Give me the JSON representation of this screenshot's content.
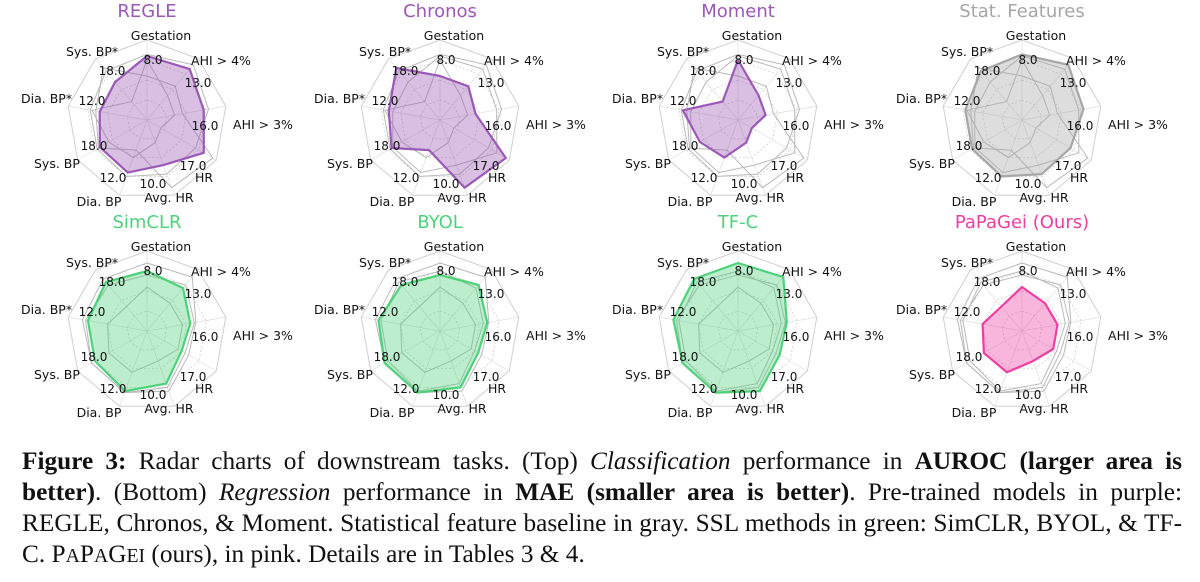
{
  "figure": {
    "axis_labels": [
      "Gestation",
      "AHI > 4%",
      "AHI > 3%",
      "HR",
      "Avg. HR",
      "Dia. BP",
      "Sys. BP",
      "Dia. BP*",
      "Sys. BP*"
    ],
    "classification_ticks": [
      "8.0",
      "13.0",
      "16.0",
      "17.0",
      "10.0",
      "12.0",
      "18.0",
      "12.0",
      "18.0"
    ],
    "regression_ticks": [
      "8.0",
      "13.0",
      "16.0",
      "17.0",
      "10.0",
      "12.0",
      "18.0",
      "12.0",
      "18.0"
    ]
  },
  "chart_data": [
    {
      "type": "radar",
      "panel": "top",
      "title": "REGLE",
      "color": "#9b59b6",
      "metric": "AUROC",
      "values": [
        0.8,
        0.83,
        0.72,
        0.82,
        0.6,
        0.7,
        0.68,
        0.6,
        0.62
      ]
    },
    {
      "type": "radar",
      "panel": "top",
      "title": "Chronos",
      "color": "#9b59b6",
      "metric": "AUROC",
      "values": [
        0.55,
        0.55,
        0.45,
        0.95,
        0.9,
        0.4,
        0.7,
        0.65,
        0.85
      ]
    },
    {
      "type": "radar",
      "panel": "top",
      "title": "Moment",
      "color": "#9b59b6",
      "metric": "AUROC",
      "values": [
        0.75,
        0.4,
        0.35,
        0.2,
        0.3,
        0.5,
        0.55,
        0.7,
        0.3
      ]
    },
    {
      "type": "radar",
      "panel": "top",
      "title": "Stat. Features",
      "color": "#a6a6a6",
      "metric": "AUROC",
      "values": [
        0.82,
        0.9,
        0.78,
        0.7,
        0.72,
        0.75,
        0.72,
        0.72,
        0.8
      ]
    },
    {
      "type": "radar",
      "panel": "bottom",
      "title": "SimCLR",
      "color": "#4fd17c",
      "metric": "MAE",
      "values": [
        0.75,
        0.7,
        0.55,
        0.5,
        0.7,
        0.8,
        0.75,
        0.75,
        0.8
      ]
    },
    {
      "type": "radar",
      "panel": "bottom",
      "title": "BYOL",
      "color": "#4fd17c",
      "metric": "MAE",
      "values": [
        0.7,
        0.75,
        0.6,
        0.55,
        0.75,
        0.82,
        0.8,
        0.78,
        0.75
      ]
    },
    {
      "type": "radar",
      "panel": "bottom",
      "title": "TF-C",
      "color": "#4fd17c",
      "metric": "MAE",
      "values": [
        0.85,
        0.88,
        0.62,
        0.6,
        0.8,
        0.82,
        0.8,
        0.82,
        0.85
      ]
    },
    {
      "type": "radar",
      "panel": "bottom",
      "title": "PaPaGei (Ours)",
      "color": "#ee3ea2",
      "metric": "MAE",
      "values": [
        0.55,
        0.45,
        0.45,
        0.45,
        0.4,
        0.55,
        0.55,
        0.5,
        0.4
      ]
    }
  ],
  "caption": {
    "figure_label": "Figure 3:",
    "t1": " Radar charts of downstream tasks. (Top) ",
    "t1_italic": "Classification",
    "t2": " performance in ",
    "t2_bold": "AUROC (larger area is better)",
    "t3": ". (Bottom) ",
    "t3_italic": "Regression",
    "t4": " performance in ",
    "t4_bold": "MAE (smaller area is better)",
    "t5": ". Pre-trained models in purple: REGLE, Chronos, & Moment. Statistical feature baseline in gray. SSL methods in green: SimCLR, BYOL, & TF-C. ",
    "papagei_sc": "PaPaGei",
    "t6": " (ours), in pink. Details are in Tables 3 & 4."
  }
}
